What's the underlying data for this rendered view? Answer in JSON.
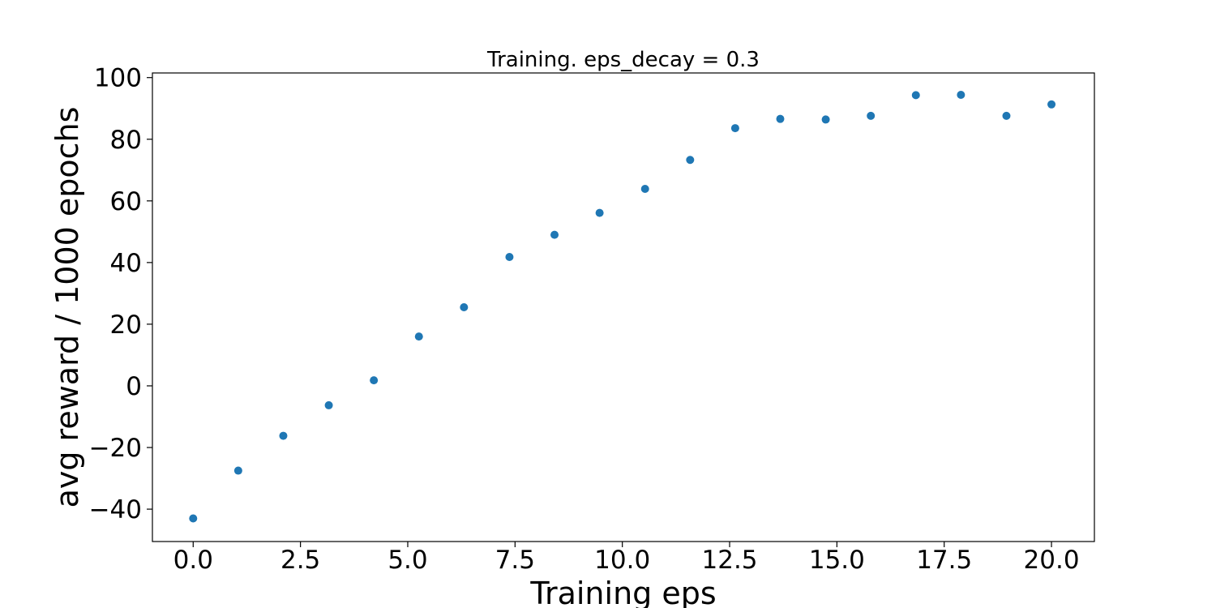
{
  "chart_data": {
    "type": "scatter",
    "title": "Training. eps_decay = 0.3",
    "xlabel": "Training eps",
    "ylabel": "avg reward / 1000 epochs",
    "xlim": [
      -0.95,
      21.0
    ],
    "ylim": [
      -50.5,
      101.5
    ],
    "xticks": [
      0.0,
      2.5,
      5.0,
      7.5,
      10.0,
      12.5,
      15.0,
      17.5,
      20.0
    ],
    "xtick_labels": [
      "0.0",
      "2.5",
      "5.0",
      "7.5",
      "10.0",
      "12.5",
      "15.0",
      "17.5",
      "20.0"
    ],
    "yticks": [
      -40,
      -20,
      0,
      20,
      40,
      60,
      80,
      100
    ],
    "ytick_labels": [
      "−40",
      "−20",
      "0",
      "20",
      "40",
      "60",
      "80",
      "100"
    ],
    "grid": false,
    "marker_color": "#1f77b4",
    "series": [
      {
        "x": [
          0.0,
          1.05,
          2.1,
          3.16,
          4.21,
          5.26,
          6.31,
          7.37,
          8.42,
          9.47,
          10.53,
          11.58,
          12.63,
          13.68,
          14.74,
          15.79,
          16.84,
          17.89,
          18.95,
          20.0
        ],
        "y": [
          -43.0,
          -27.5,
          -16.2,
          -6.3,
          1.8,
          16.0,
          25.5,
          41.8,
          49.0,
          56.1,
          63.9,
          73.3,
          83.6,
          86.6,
          86.4,
          87.6,
          94.3,
          94.4,
          87.6,
          91.3
        ]
      }
    ]
  }
}
